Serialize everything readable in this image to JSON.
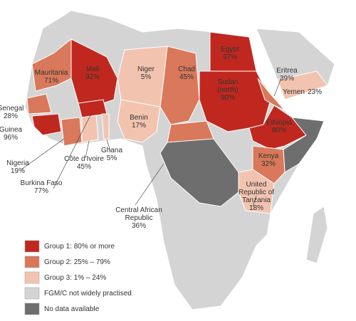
{
  "countries": [
    {
      "name": [
        "Egypt"
      ],
      "value": "97%"
    },
    {
      "name": [
        "Mali"
      ],
      "value": "92%"
    },
    {
      "name": [
        "Mauritania"
      ],
      "value": "71%"
    },
    {
      "name": [
        "Niger"
      ],
      "value": "5%"
    },
    {
      "name": [
        "Chad"
      ],
      "value": "45%"
    },
    {
      "name": [
        "Sudan",
        "(north)"
      ],
      "value": "90%"
    },
    {
      "name": [
        "Eritrea"
      ],
      "value": "39%"
    },
    {
      "name": [
        "Yemen"
      ],
      "value": "23%"
    },
    {
      "name": [
        "Ethiopia"
      ],
      "value": "80%"
    },
    {
      "name": [
        "Senegal"
      ],
      "value": "28%"
    },
    {
      "name": [
        "Guinea"
      ],
      "value": "96%"
    },
    {
      "name": [
        "Nigeria"
      ],
      "value": "19%"
    },
    {
      "name": [
        "Côte d'Ivoire"
      ],
      "value": "45%"
    },
    {
      "name": [
        "Ghana"
      ],
      "value": "5%"
    },
    {
      "name": [
        "Benin"
      ],
      "value": "17%"
    },
    {
      "name": [
        "Kenya"
      ],
      "value": "32%"
    },
    {
      "name": [
        "Burkina Faso"
      ],
      "value": "77%"
    },
    {
      "name": [
        "United",
        "Republic of",
        "Tanzania"
      ],
      "value": "18%"
    },
    {
      "name": [
        "Central African",
        "Republic"
      ],
      "value": "36%"
    }
  ],
  "legend": [
    "Group 1: 80% or more",
    "Group 2: 25% – 79%",
    "Group 3: 1% – 24%",
    "FGM/C not widely practised",
    "No data available"
  ]
}
